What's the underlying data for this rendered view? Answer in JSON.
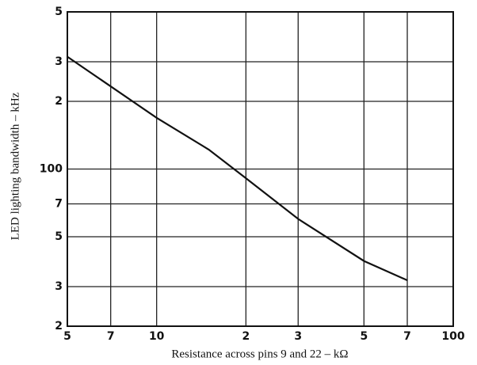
{
  "chart_data": {
    "type": "line",
    "x_label": "Resistance across pins 9 and 22  –  kΩ",
    "y_label": "LED lighting bandwidth  –  kHz",
    "x_scale": "log",
    "y_scale": "log",
    "grid": true,
    "xlim": [
      5,
      100
    ],
    "ylim": [
      20,
      500
    ],
    "xticks": [
      5,
      7,
      10,
      {
        "value": 20,
        "label": "2"
      },
      {
        "value": 30,
        "label": "3"
      },
      {
        "value": 50,
        "label": "5"
      },
      {
        "value": 70,
        "label": "7"
      },
      100
    ],
    "yticks": [
      {
        "value": 20,
        "label": "2"
      },
      {
        "value": 30,
        "label": "3"
      },
      {
        "value": 50,
        "label": "5"
      },
      {
        "value": 70,
        "label": "7"
      },
      100,
      {
        "value": 200,
        "label": "2"
      },
      {
        "value": 300,
        "label": "3"
      },
      {
        "value": 500,
        "label": "5"
      }
    ],
    "series": [
      {
        "color": "#111111",
        "x": [
          5,
          10,
          15,
          20,
          30,
          50,
          70
        ],
        "values": [
          316,
          169,
          122,
          91,
          60,
          39,
          32
        ]
      }
    ]
  }
}
